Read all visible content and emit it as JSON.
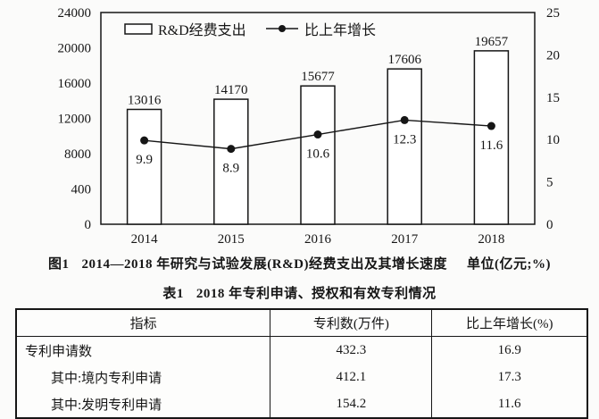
{
  "colors": {
    "ink": "#161616",
    "paper": "#fbfbfa",
    "bar_fill": "#ffffff"
  },
  "chart": {
    "caption_label": "图1",
    "caption_title": "2014—2018 年研究与试验发展(R&D)经费支出及其增长速度",
    "caption_units": "单位(亿元;%)"
  },
  "chart_data": {
    "type": "bar+line",
    "categories": [
      "2014",
      "2015",
      "2016",
      "2017",
      "2018"
    ],
    "series": [
      {
        "name": "R&D经费支出",
        "type": "bar",
        "axis": "left",
        "values": [
          13016,
          14170,
          15677,
          17606,
          19657
        ]
      },
      {
        "name": "比上年增长",
        "type": "line",
        "axis": "right",
        "values": [
          9.9,
          8.9,
          10.6,
          12.3,
          11.6
        ]
      }
    ],
    "left_axis": {
      "tick_labels": [
        "24000",
        "20000",
        "16000",
        "12000",
        "8000",
        "400",
        "0"
      ],
      "min": 0,
      "max": 24000
    },
    "right_axis": {
      "tick_labels": [
        "25",
        "20",
        "15",
        "10",
        "5",
        "0"
      ],
      "min": 0,
      "max": 25
    },
    "title": "图1 2014—2018年研究与试验发展(R&D)经费支出及其增长速度",
    "units": "单位(亿元;%)",
    "legend": [
      "R&D经费支出",
      "比上年增长"
    ],
    "legend_position": "top-left-inside",
    "grid": false
  },
  "table": {
    "title_label": "表1",
    "title_text": "2018 年专利申请、授权和有效专利情况",
    "headers": [
      "指标",
      "专利数(万件)",
      "比上年增长(%)"
    ],
    "rows": [
      {
        "indicator": "专利申请数",
        "count": "432.3",
        "growth": "16.9"
      },
      {
        "indicator": "其中:境内专利申请",
        "count": "412.1",
        "growth": "17.3"
      },
      {
        "indicator": "其中:发明专利申请",
        "count": "154.2",
        "growth": "11.6"
      }
    ]
  }
}
